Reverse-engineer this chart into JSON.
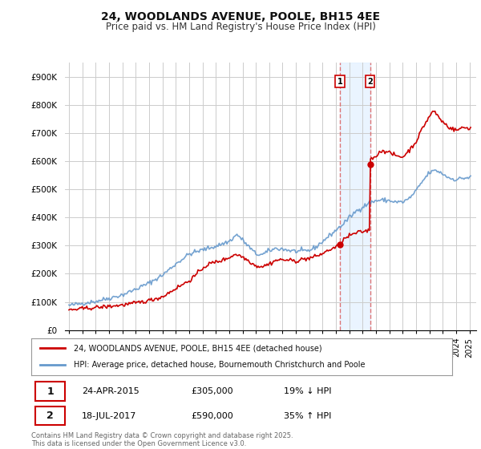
{
  "title": "24, WOODLANDS AVENUE, POOLE, BH15 4EE",
  "subtitle": "Price paid vs. HM Land Registry's House Price Index (HPI)",
  "title_fontsize": 10,
  "subtitle_fontsize": 8.5,
  "background_color": "#ffffff",
  "grid_color": "#cccccc",
  "hpi_color": "#6699cc",
  "price_color": "#cc0000",
  "vline_color": "#dd6666",
  "vshade_color": "#ddeeff",
  "ylim": [
    0,
    950000
  ],
  "yticks": [
    0,
    100000,
    200000,
    300000,
    400000,
    500000,
    600000,
    700000,
    800000,
    900000
  ],
  "ytick_labels": [
    "£0",
    "£100K",
    "£200K",
    "£300K",
    "£400K",
    "£500K",
    "£600K",
    "£700K",
    "£800K",
    "£900K"
  ],
  "sale1_date": "24-APR-2015",
  "sale1_price": 305000,
  "sale1_label": "19% ↓ HPI",
  "sale2_date": "18-JUL-2017",
  "sale2_price": 590000,
  "sale2_label": "35% ↑ HPI",
  "sale1_x": 2015.3,
  "sale2_x": 2017.55,
  "legend_line1": "24, WOODLANDS AVENUE, POOLE, BH15 4EE (detached house)",
  "legend_line2": "HPI: Average price, detached house, Bournemouth Christchurch and Poole",
  "footer": "Contains HM Land Registry data © Crown copyright and database right 2025.\nThis data is licensed under the Open Government Licence v3.0.",
  "xlim_left": 1994.7,
  "xlim_right": 2025.5
}
